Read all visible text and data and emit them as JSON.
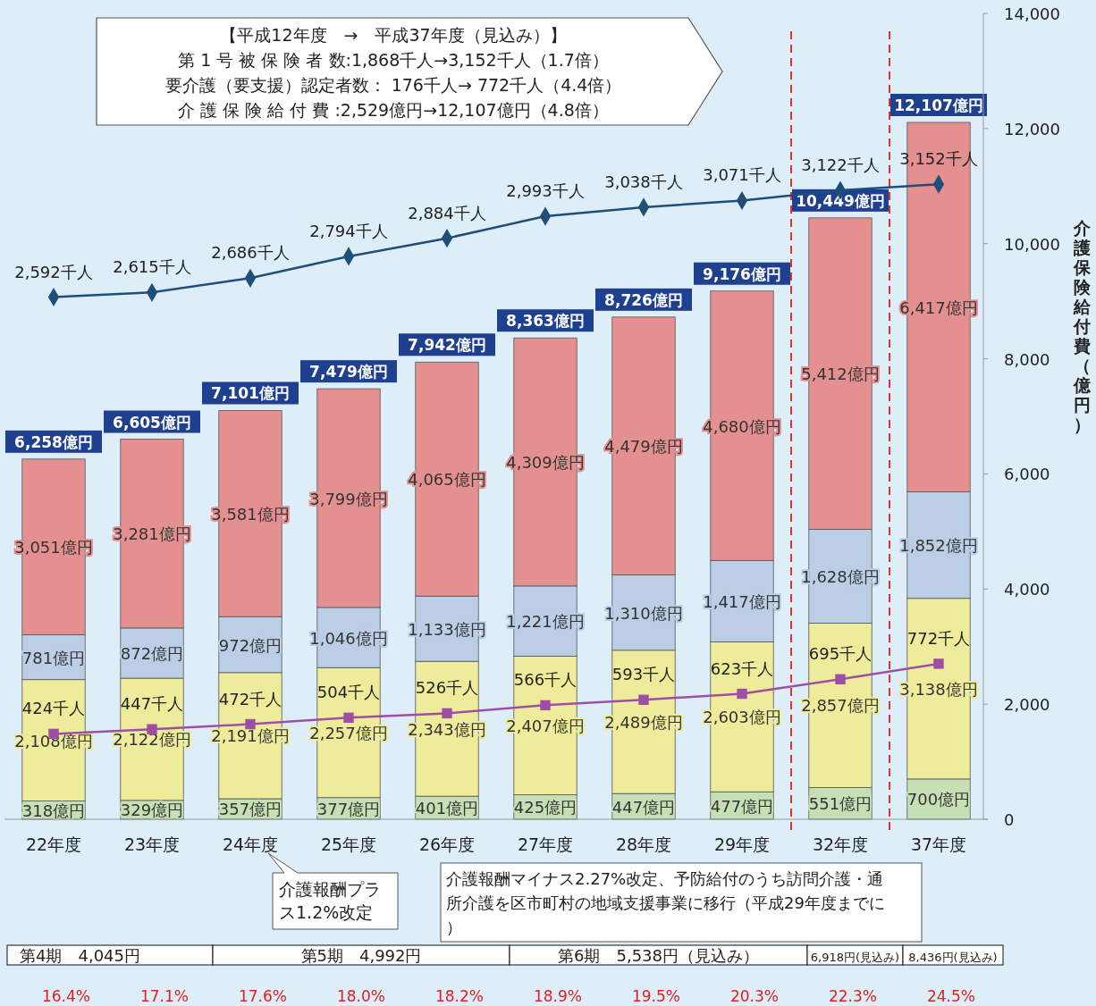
{
  "chart_data": {
    "type": "bar",
    "stacked": true,
    "ylabel": "介護保険給付費（億円）",
    "categories": [
      "22年度",
      "23年度",
      "24年度",
      "25年度",
      "26年度",
      "27年度",
      "28年度",
      "29年度",
      "32年度",
      "37年度"
    ],
    "ylim": [
      0,
      14000
    ],
    "yticks": [
      0,
      {
        "value": 2000,
        "label": "2,000"
      },
      {
        "value": 4000,
        "label": "4,000"
      },
      {
        "value": 6000,
        "label": "6,000"
      },
      {
        "value": 8000,
        "label": "8,000"
      },
      {
        "value": 10000,
        "label": "10,000"
      },
      {
        "value": 12000,
        "label": "12,000"
      },
      {
        "value": 14000,
        "label": "14,000"
      }
    ],
    "y2lim": [
      0,
      4000
    ],
    "grid": false,
    "series": [
      {
        "color": "#c6dfb4",
        "values": [
          318,
          329,
          357,
          377,
          401,
          425,
          447,
          477,
          551,
          700
        ],
        "value_labels": [
          "318億円",
          "329億円",
          "357億円",
          "377億円",
          "401億円",
          "425億円",
          "447億円",
          "477億円",
          "551億円",
          "700億円"
        ]
      },
      {
        "color": "#eeec9a",
        "values": [
          2108,
          2122,
          2191,
          2257,
          2343,
          2407,
          2489,
          2603,
          2857,
          3138
        ],
        "value_labels": [
          "2,108億円",
          "2,122億円",
          "2,191億円",
          "2,257億円",
          "2,343億円",
          "2,407億円",
          "2,489億円",
          "2,603億円",
          "2,857億円",
          "3,138億円"
        ]
      },
      {
        "color": "#bccde6",
        "values": [
          781,
          872,
          972,
          1046,
          1133,
          1221,
          1310,
          1417,
          1628,
          1852
        ],
        "value_labels": [
          "781億円",
          "872億円",
          "972億円",
          "1,046億円",
          "1,133億円",
          "1,221億円",
          "1,310億円",
          "1,417億円",
          "1,628億円",
          "1,852億円"
        ]
      },
      {
        "color": "#e49090",
        "values": [
          3051,
          3281,
          3581,
          3799,
          4065,
          4309,
          4479,
          4680,
          5412,
          6417
        ],
        "value_labels": [
          "3,051億円",
          "3,281億円",
          "3,581億円",
          "3,799億円",
          "4,065億円",
          "4,309億円",
          "4,479億円",
          "4,680億円",
          "5,412億円",
          "6,417億円"
        ]
      },
      {
        "type": "line",
        "axis": "y2",
        "color": "#1f4e79",
        "marker": "diamond",
        "values": [
          2592,
          2615,
          2686,
          2794,
          2884,
          2993,
          3038,
          3071,
          3122,
          3152
        ],
        "value_labels": [
          "2,592千人",
          "2,615千人",
          "2,686千人",
          "2,794千人",
          "2,884千人",
          "2,993千人",
          "3,038千人",
          "3,071千人",
          "3,122千人",
          "3,152千人"
        ]
      },
      {
        "type": "line",
        "axis": "y2",
        "color": "#9e4fa5",
        "marker": "square",
        "values": [
          424,
          447,
          472,
          504,
          526,
          566,
          593,
          623,
          695,
          772
        ],
        "value_labels": [
          "424千人",
          "447千人",
          "472千人",
          "504千人",
          "526千人",
          "566千人",
          "593千人",
          "623千人",
          "695千人",
          "772千人"
        ]
      }
    ],
    "totals": [
      "6,258億円",
      "6,605億円",
      "7,101億円",
      "7,479億円",
      "7,942億円",
      "8,363億円",
      "8,726億円",
      "9,176億円",
      "10,449億円",
      "12,107億円"
    ],
    "annotations": [
      "【平成12年度　→　平成37年度（見込み）】",
      "第 1 号 被 保 険 者 数:1,868千人→3,152千人（1.7倍）",
      "要介護（要支援）認定者数：  176千人→  772千人（4.4倍）",
      "介 護 保 険 給 付 費 :2,529億円→12,107億円（4.8倍）",
      "介護報酬プラス1.2%改定",
      "介護報酬マイナス2.27%改定、予防給付のうち訪問介護・通所介護を区市町村の地域支援事業に移行（平成29年度までに）",
      "第4期　4,045円",
      "第5期　4,992円",
      "第6期　5,538円（見込み）",
      "6,918円(見込み)",
      "8,436円(見込み)",
      "16.4%",
      "17.1%",
      "17.6%",
      "18.0%",
      "18.2%",
      "18.9%",
      "19.5%",
      "20.3%",
      "22.3%",
      "24.5%"
    ]
  }
}
